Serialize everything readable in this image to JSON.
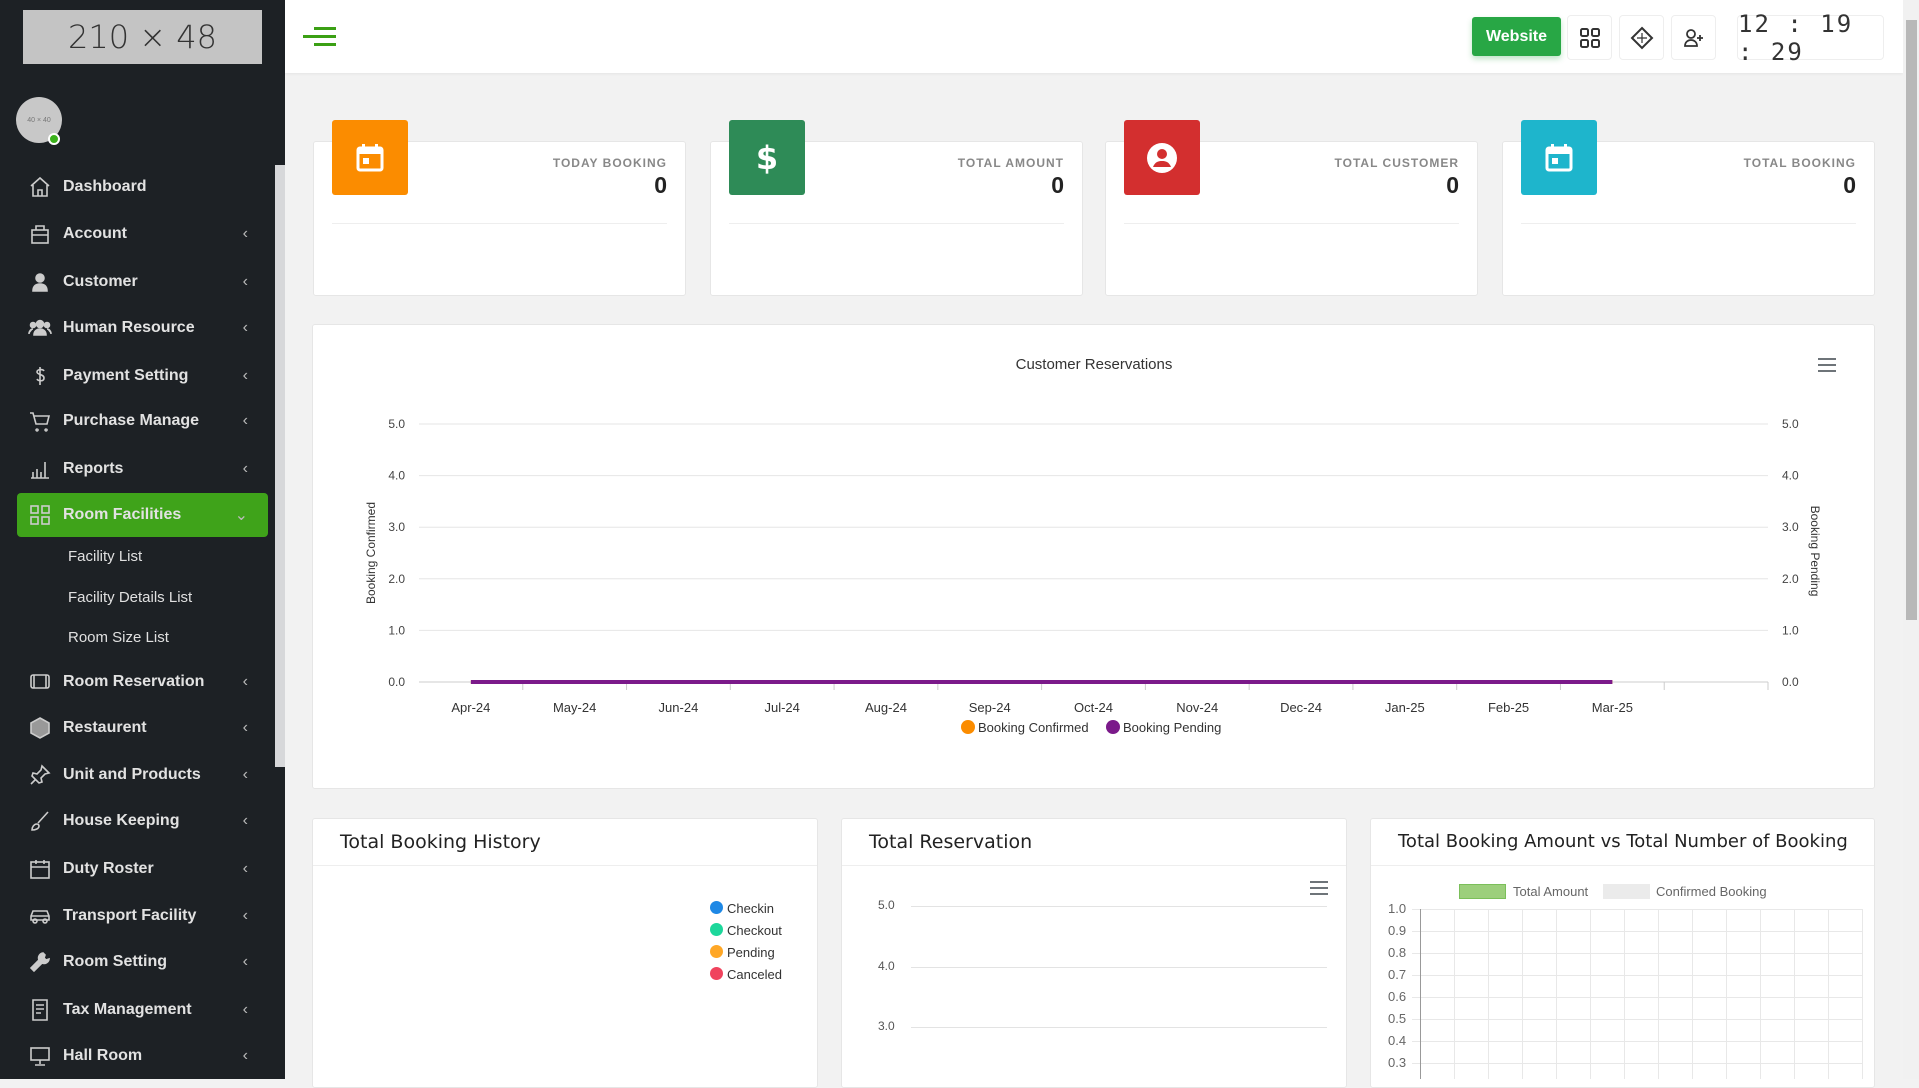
{
  "sidebar": {
    "logo": "210 × 48",
    "avatar": "40 × 40",
    "items": [
      {
        "label": "Dashboard",
        "icon": "home-icon",
        "chevron": false
      },
      {
        "label": "Account",
        "icon": "briefcase-icon",
        "chevron": true
      },
      {
        "label": "Customer",
        "icon": "user-icon",
        "chevron": true
      },
      {
        "label": "Human Resource",
        "icon": "users-icon",
        "chevron": true
      },
      {
        "label": "Payment Setting",
        "icon": "dollar-icon",
        "chevron": true
      },
      {
        "label": "Purchase Manage",
        "icon": "cart-icon",
        "chevron": true
      },
      {
        "label": "Reports",
        "icon": "bar-chart-icon",
        "chevron": true
      },
      {
        "label": "Room Facilities",
        "icon": "grid-icon",
        "chevron": true,
        "active": true
      },
      {
        "label": "Room Reservation",
        "icon": "tv-icon",
        "chevron": true
      },
      {
        "label": "Restaurent",
        "icon": "hexagon-icon",
        "chevron": true
      },
      {
        "label": "Unit and Products",
        "icon": "pin-icon",
        "chevron": true
      },
      {
        "label": "House Keeping",
        "icon": "brush-icon",
        "chevron": true
      },
      {
        "label": "Duty Roster",
        "icon": "calendar-icon",
        "chevron": true
      },
      {
        "label": "Transport Facility",
        "icon": "car-icon",
        "chevron": true
      },
      {
        "label": "Room Setting",
        "icon": "wrench-icon",
        "chevron": true
      },
      {
        "label": "Tax Management",
        "icon": "receipt-icon",
        "chevron": true
      },
      {
        "label": "Hall Room",
        "icon": "monitor-icon",
        "chevron": true
      }
    ],
    "sub_items": [
      "Facility List",
      "Facility Details List",
      "Room Size List"
    ]
  },
  "header": {
    "website": "Website",
    "clock": "12 : 19 : 29"
  },
  "stats": [
    {
      "label": "TODAY BOOKING",
      "value": "0",
      "color": "#fb8c00",
      "icon": "calendar-icon"
    },
    {
      "label": "TOTAL AMOUNT",
      "value": "0",
      "color": "#2e8b57",
      "icon": "dollar-icon"
    },
    {
      "label": "TOTAL CUSTOMER",
      "value": "0",
      "color": "#d32f2f",
      "icon": "user-circle-icon"
    },
    {
      "label": "TOTAL BOOKING",
      "value": "0",
      "color": "#1eb5cc",
      "icon": "calendar-icon"
    }
  ],
  "chart_data": [
    {
      "type": "line",
      "title": "Customer Reservations",
      "categories": [
        "Apr-24",
        "May-24",
        "Jun-24",
        "Jul-24",
        "Aug-24",
        "Sep-24",
        "Oct-24",
        "Nov-24",
        "Dec-24",
        "Jan-25",
        "Feb-25",
        "Mar-25"
      ],
      "ylabel": "Booking Confirmed",
      "y2label": "Booking Pending",
      "ylim": [
        0,
        5
      ],
      "yticks": [
        "0.0",
        "1.0",
        "2.0",
        "3.0",
        "4.0",
        "5.0"
      ],
      "legend": "bottom",
      "grid": true,
      "series": [
        {
          "name": "Booking Confirmed",
          "color": "#fb8c00",
          "values": [
            0,
            0,
            0,
            0,
            0,
            0,
            0,
            0,
            0,
            0,
            0,
            0
          ]
        },
        {
          "name": "Booking Pending",
          "color": "#7b1a8a",
          "values": [
            0,
            0,
            0,
            0,
            0,
            0,
            0,
            0,
            0,
            0,
            0,
            0
          ]
        }
      ]
    },
    {
      "type": "pie",
      "title": "Total Booking History",
      "legend": "right",
      "series": [
        {
          "name": "Checkin",
          "color": "#1e88e5"
        },
        {
          "name": "Checkout",
          "color": "#1dd79b"
        },
        {
          "name": "Pending",
          "color": "#ffa726"
        },
        {
          "name": "Canceled",
          "color": "#f0435d"
        }
      ]
    },
    {
      "type": "line",
      "title": "Total Reservation",
      "yticks": [
        "5.0",
        "4.0",
        "3.0"
      ]
    },
    {
      "type": "bar",
      "title": "Total Booking Amount vs Total Number of Booking",
      "legend": "top",
      "series": [
        {
          "name": "Total Amount",
          "color": "#9ccf7c"
        },
        {
          "name": "Confirmed Booking",
          "color": "#ebebeb"
        }
      ],
      "ylim": [
        0,
        1
      ],
      "yticks": [
        "1.0",
        "0.9",
        "0.8",
        "0.7",
        "0.6",
        "0.5",
        "0.4",
        "0.3"
      ],
      "grid": true
    }
  ]
}
